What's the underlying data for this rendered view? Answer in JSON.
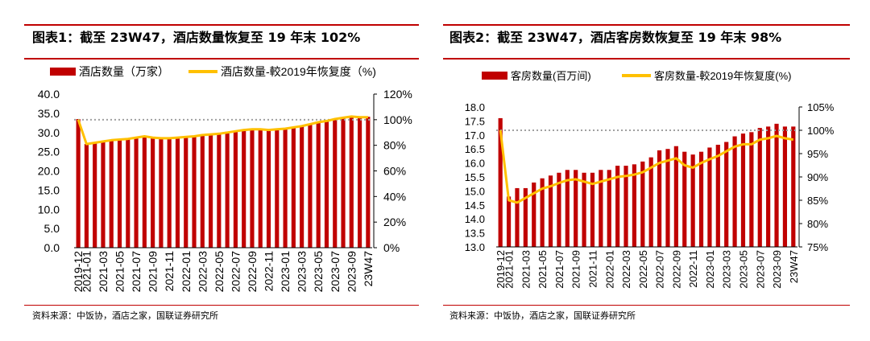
{
  "panels": [
    {
      "title": "图表1：截至 23W47，酒店数量恢复至 19 年末 102%",
      "source": "资料来源：中饭协，酒店之家，国联证券研究所",
      "chart_data": {
        "type": "bar",
        "title": "",
        "legend": [
          "酒店数量（万家）",
          "酒店数量-較2019年恢复度（%)"
        ],
        "legend_position": "top",
        "categories": [
          "2019-12",
          "2021-01",
          "2021-02",
          "2021-03",
          "2021-04",
          "2021-05",
          "2021-06",
          "2021-07",
          "2021-08",
          "2021-09",
          "2021-10",
          "2021-11",
          "2021-12",
          "2022-01",
          "2022-02",
          "2022-03",
          "2022-04",
          "2022-05",
          "2022-06",
          "2022-07",
          "2022-08",
          "2022-09",
          "2022-10",
          "2022-11",
          "2022-12",
          "2023-01",
          "2023-02",
          "2023-03",
          "2023-04",
          "2023-05",
          "2023-06",
          "2023-07",
          "2023-08",
          "2023-09",
          "2023-10",
          "23W47"
        ],
        "tick_labels": [
          "2019-12",
          "2021-01",
          "2021-03",
          "2021-05",
          "2021-07",
          "2021-09",
          "2021-11",
          "2022-01",
          "2022-03",
          "2022-05",
          "2022-07",
          "2022-09",
          "2022-11",
          "2023-01",
          "2023-03",
          "2023-05",
          "2023-07",
          "2023-09",
          "23W47"
        ],
        "series": [
          {
            "name": "酒店数量（万家）",
            "type": "bar",
            "axis": "left",
            "color": "#c00000",
            "values": [
              33.5,
              27.0,
              27.4,
              27.7,
              28.0,
              28.2,
              28.4,
              28.6,
              28.9,
              28.7,
              28.6,
              28.6,
              28.8,
              29.0,
              29.2,
              29.5,
              29.7,
              29.9,
              30.2,
              30.5,
              30.7,
              30.9,
              31.0,
              30.9,
              31.0,
              31.2,
              31.5,
              31.8,
              32.3,
              32.8,
              33.2,
              33.6,
              33.9,
              34.3,
              34.2,
              34.1
            ]
          },
          {
            "name": "酒店数量-較2019年恢复度（%)",
            "type": "line",
            "axis": "right",
            "color": "#ffc000",
            "values": [
              100,
              81,
              82,
              83,
              84,
              84.5,
              85,
              86,
              87,
              86,
              85.5,
              85.5,
              86,
              86.5,
              87,
              88,
              88.5,
              89,
              90,
              91,
              92,
              92.5,
              92.5,
              92,
              92.5,
              93,
              94,
              95,
              96.5,
              98,
              99,
              100.5,
              101.5,
              102.5,
              102,
              102
            ]
          },
          {
            "name": "",
            "type": "reference",
            "axis": "right",
            "color": "#a0a0a0",
            "value": 100
          }
        ],
        "ylim_left": [
          0,
          40
        ],
        "yticks_left": [
          "0.0",
          "5.0",
          "10.0",
          "15.0",
          "20.0",
          "25.0",
          "30.0",
          "35.0",
          "40.0"
        ],
        "ylim_right": [
          0,
          120
        ],
        "yticks_right": [
          "0%",
          "20%",
          "40%",
          "60%",
          "80%",
          "100%",
          "120%"
        ]
      }
    },
    {
      "title": "图表2：截至 23W47，酒店客房数恢复至 19 年末 98%",
      "source": "资料来源：中饭协，酒店之家，国联证券研究所",
      "chart_data": {
        "type": "bar",
        "title": "",
        "legend": [
          "客房数量(百万间)",
          "客房数量-較2019年恢复度(%)"
        ],
        "legend_position": "top",
        "categories": [
          "2019-12",
          "2021-01",
          "2021-02",
          "2021-03",
          "2021-04",
          "2021-05",
          "2021-06",
          "2021-07",
          "2021-08",
          "2021-09",
          "2021-10",
          "2021-11",
          "2021-12",
          "2022-01",
          "2022-02",
          "2022-03",
          "2022-04",
          "2022-05",
          "2022-06",
          "2022-07",
          "2022-08",
          "2022-09",
          "2022-10",
          "2022-11",
          "2022-12",
          "2023-01",
          "2023-02",
          "2023-03",
          "2023-04",
          "2023-05",
          "2023-06",
          "2023-07",
          "2023-08",
          "2023-09",
          "2023-10",
          "23W47"
        ],
        "tick_labels": [
          "2019-12",
          "2021-01",
          "2021-03",
          "2021-05",
          "2021-07",
          "2021-09",
          "2021-11",
          "2022-01",
          "2022-03",
          "2022-05",
          "2022-07",
          "2022-09",
          "2022-11",
          "2023-01",
          "2023-03",
          "2023-05",
          "2023-07",
          "2023-09",
          "23W47"
        ],
        "series": [
          {
            "name": "客房数量(百万间)",
            "type": "bar",
            "axis": "left",
            "color": "#c00000",
            "values": [
              17.6,
              14.8,
              15.1,
              15.1,
              15.3,
              15.45,
              15.55,
              15.65,
              15.75,
              15.75,
              15.65,
              15.65,
              15.75,
              15.75,
              15.9,
              15.9,
              15.95,
              16.05,
              16.2,
              16.45,
              16.5,
              16.6,
              16.4,
              16.3,
              16.4,
              16.55,
              16.65,
              16.75,
              16.95,
              17.05,
              17.1,
              17.25,
              17.3,
              17.4,
              17.3,
              17.3
            ]
          },
          {
            "name": "客房数量-較2019年恢复度(%)",
            "type": "line",
            "axis": "right",
            "color": "#ffc000",
            "values": [
              100,
              85,
              84.5,
              85.5,
              86.5,
              87.5,
              88,
              88.7,
              89.3,
              89.5,
              89,
              88.5,
              89,
              89.5,
              90,
              90.2,
              90.5,
              91,
              92,
              93,
              93.5,
              94,
              92.5,
              92,
              93,
              93.8,
              94.5,
              95.5,
              96.5,
              97,
              97,
              98,
              98.3,
              98.8,
              98.3,
              98
            ]
          },
          {
            "name": "",
            "type": "reference",
            "axis": "right",
            "color": "#a0a0a0",
            "value": 100
          }
        ],
        "ylim_left": [
          13,
          18
        ],
        "yticks_left": [
          "13.0",
          "13.5",
          "14.0",
          "14.5",
          "15.0",
          "15.5",
          "16.0",
          "16.5",
          "17.0",
          "17.5",
          "18.0"
        ],
        "ylim_right": [
          75,
          105
        ],
        "yticks_right": [
          "75%",
          "80%",
          "85%",
          "90%",
          "95%",
          "100%",
          "105%"
        ]
      }
    }
  ]
}
